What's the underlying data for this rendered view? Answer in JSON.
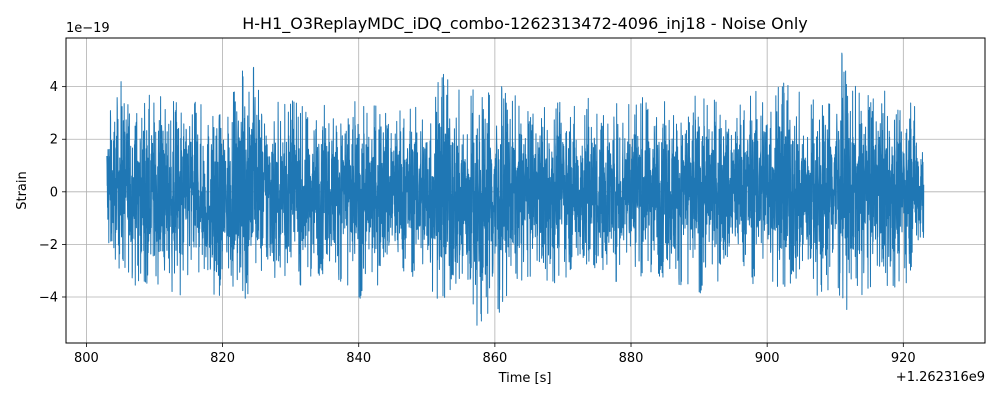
{
  "chart_data": {
    "type": "line",
    "title": "H-H1_O3ReplayMDC_iDQ_combo-1262313472-4096_inj18 - Noise Only",
    "xlabel": "Time [s]",
    "ylabel": "Strain",
    "x_offset_label": "+1.262316e9",
    "y_exponent_label": "1e−19",
    "xlim": [
      797,
      932
    ],
    "ylim": [
      -5.75,
      5.85
    ],
    "x_ticks": [
      800,
      820,
      840,
      860,
      880,
      900,
      920
    ],
    "x_tick_labels": [
      "800",
      "820",
      "840",
      "860",
      "880",
      "900",
      "920"
    ],
    "y_ticks": [
      -4,
      -2,
      0,
      2,
      4
    ],
    "y_tick_labels": [
      "−4",
      "−2",
      "0",
      "2",
      "4"
    ],
    "grid": true,
    "color": "#1f77b4",
    "series": [
      {
        "x_range": [
          803,
          923
        ],
        "envelope": {
          "x": [
            803,
            804,
            805,
            806,
            807,
            808,
            809,
            810,
            812,
            814,
            815,
            816,
            818,
            820,
            821,
            822,
            824,
            825,
            826,
            828,
            830,
            832,
            834,
            836,
            838,
            840,
            842,
            844,
            846,
            848,
            850,
            852,
            853,
            854,
            856,
            858,
            859,
            860,
            861,
            862,
            864,
            866,
            868,
            869,
            870,
            872,
            874,
            876,
            878,
            880,
            882,
            884,
            886,
            888,
            890,
            892,
            894,
            896,
            898,
            900,
            902,
            904,
            906,
            908,
            910,
            911,
            912,
            913,
            914,
            916,
            918,
            920,
            921,
            922,
            923
          ],
          "upper": [
            3.1,
            3.2,
            4.2,
            4.1,
            3.7,
            3.4,
            3.6,
            3.9,
            3.5,
            3.6,
            3.7,
            3.4,
            3.2,
            3.1,
            3.6,
            3.9,
            5.4,
            4.5,
            3.6,
            3.4,
            3.5,
            3.2,
            3.6,
            3.3,
            3.8,
            3.4,
            3.2,
            3.7,
            3.5,
            3.3,
            3.7,
            4.6,
            4.3,
            3.8,
            4.0,
            4.3,
            4.7,
            4.3,
            4.0,
            3.8,
            3.5,
            3.2,
            3.6,
            4.1,
            3.8,
            3.4,
            3.6,
            3.3,
            3.6,
            3.5,
            3.6,
            3.7,
            3.5,
            3.8,
            3.7,
            3.5,
            3.4,
            3.7,
            3.9,
            4.5,
            4.2,
            3.9,
            3.6,
            3.9,
            4.3,
            5.3,
            4.3,
            4.0,
            4.2,
            3.8,
            4.3,
            3.4,
            4.3,
            3.0,
            2.8
          ],
          "lower": [
            -2.9,
            -3.0,
            -3.4,
            -3.5,
            -3.6,
            -3.3,
            -3.5,
            -3.7,
            -3.9,
            -4.2,
            -3.7,
            -3.4,
            -3.8,
            -4.3,
            -3.8,
            -3.5,
            -4.4,
            -3.5,
            -3.7,
            -3.3,
            -3.4,
            -3.6,
            -3.4,
            -3.2,
            -3.5,
            -4.1,
            -3.6,
            -3.5,
            -3.7,
            -3.2,
            -4.0,
            -4.1,
            -4.4,
            -4.5,
            -4.8,
            -5.2,
            -4.7,
            -4.9,
            -4.5,
            -3.9,
            -3.5,
            -3.3,
            -3.6,
            -3.5,
            -3.2,
            -3.4,
            -3.9,
            -3.5,
            -3.4,
            -3.1,
            -3.3,
            -3.4,
            -3.6,
            -3.5,
            -3.9,
            -3.3,
            -3.6,
            -3.3,
            -3.5,
            -3.7,
            -3.6,
            -4.4,
            -3.8,
            -4.0,
            -3.6,
            -4.2,
            -4.8,
            -3.9,
            -4.1,
            -3.6,
            -3.8,
            -3.5,
            -3.4,
            -2.7,
            -2.6
          ]
        }
      }
    ]
  }
}
